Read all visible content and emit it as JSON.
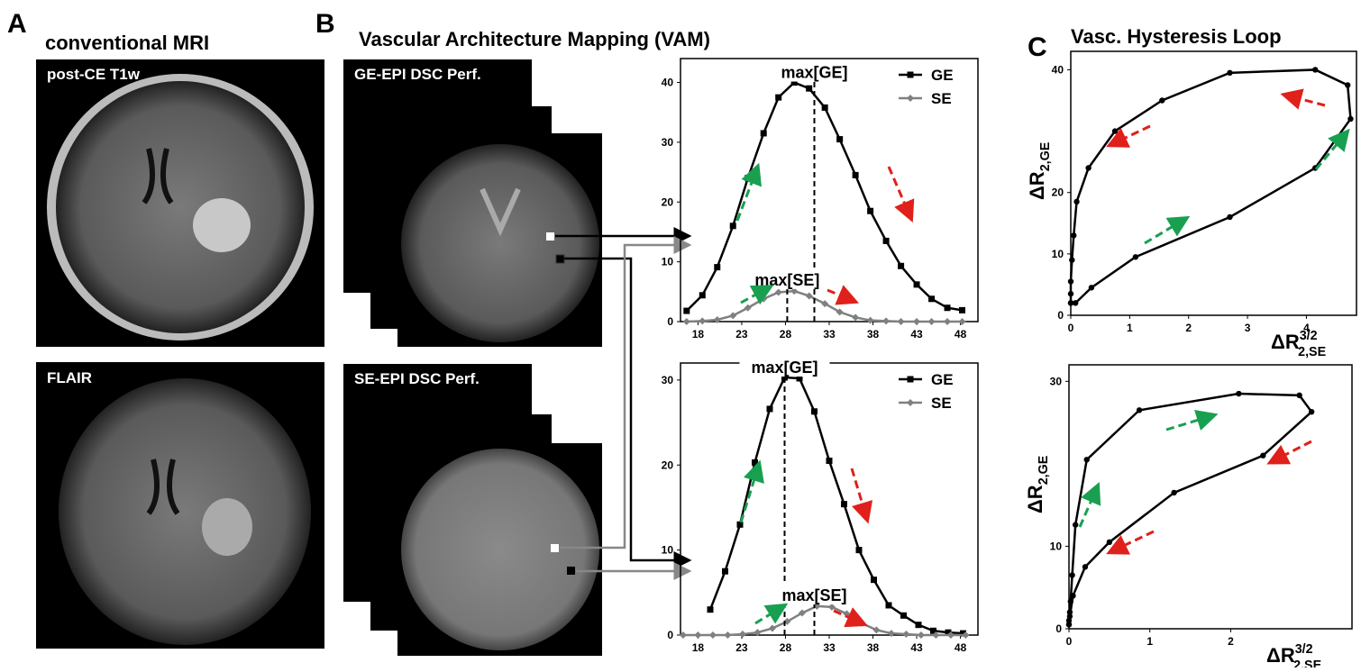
{
  "panels": {
    "a": {
      "label": "A",
      "title": "conventional MRI",
      "images": [
        "post-CE T1w",
        "FLAIR"
      ]
    },
    "b": {
      "label": "B",
      "title": "Vascular Architecture Mapping  (VAM)",
      "images": [
        "GE-EPI DSC Perf.",
        "SE-EPI DSC Perf."
      ]
    },
    "c": {
      "label": "C",
      "title": "Vasc. Hysteresis Loop"
    }
  },
  "chart_data": [
    {
      "type": "line",
      "xlim": [
        16,
        50
      ],
      "ylim": [
        0,
        44
      ],
      "xticks": [
        18,
        23,
        28,
        33,
        38,
        43,
        48
      ],
      "yticks": [
        0,
        10,
        20,
        30,
        40
      ],
      "legend": "top-right",
      "series": [
        {
          "name": "GE",
          "color": "#000000",
          "marker": "square",
          "x": [
            16.7,
            18.5,
            20.2,
            22,
            23.7,
            25.5,
            27.2,
            29,
            30.7,
            32.5,
            34.2,
            36,
            37.7,
            39.5,
            41.2,
            43,
            44.7,
            46.5,
            48.2
          ],
          "values": [
            1.8,
            4.4,
            9.1,
            16,
            24,
            31.5,
            37.5,
            40,
            39,
            35.8,
            30.5,
            24.5,
            18.5,
            13.5,
            9.3,
            6.2,
            3.8,
            2.3,
            1.9
          ]
        },
        {
          "name": "SE",
          "color": "#808080",
          "marker": "diamond",
          "x": [
            16.7,
            18.5,
            20.2,
            22,
            23.7,
            25.5,
            27.2,
            29,
            30.7,
            32.5,
            34.2,
            36,
            37.7,
            39.5,
            41.2,
            43,
            44.7,
            46.5,
            48.2
          ],
          "values": [
            0,
            0.1,
            0.3,
            1,
            2.3,
            3.8,
            4.9,
            5.1,
            4.3,
            3,
            1.6,
            0.7,
            0.2,
            0.1,
            0,
            0,
            0,
            0,
            0
          ]
        }
      ],
      "annotations": [
        {
          "text": "max[GE]",
          "x": 31.3,
          "y": 40
        },
        {
          "text": "max[SE]",
          "x": 28.2,
          "y": 5.3
        }
      ]
    },
    {
      "type": "line",
      "xlim": [
        16,
        50
      ],
      "ylim": [
        0,
        32
      ],
      "xticks": [
        18,
        23,
        28,
        33,
        38,
        43,
        48
      ],
      "yticks": [
        0,
        10,
        20,
        30
      ],
      "legend": "top-right",
      "series": [
        {
          "name": "GE",
          "color": "#000000",
          "marker": "square",
          "x": [
            19.4,
            21.1,
            22.8,
            24.5,
            26.2,
            27.9,
            29.6,
            31.3,
            33,
            34.7,
            36.4,
            38.1,
            39.8,
            41.5,
            43.2,
            44.9,
            46.6,
            48.3
          ],
          "values": [
            3,
            7.5,
            13,
            20.3,
            26.6,
            30.3,
            30.2,
            26.3,
            20.5,
            15.4,
            10,
            6.5,
            3.5,
            2.3,
            1.2,
            0.5,
            0.3,
            0.2
          ]
        },
        {
          "name": "SE",
          "color": "#808080",
          "marker": "diamond",
          "x": [
            16.3,
            18,
            19.7,
            21.4,
            23.1,
            24.8,
            26.5,
            28.2,
            29.9,
            31.6,
            33.3,
            35,
            36.7,
            38.4,
            40.1,
            41.8,
            43.5,
            45.2,
            46.9,
            48.6
          ],
          "values": [
            0,
            0,
            0,
            0,
            0.1,
            0.3,
            0.8,
            1.6,
            2.6,
            3.4,
            3.3,
            2.5,
            1.4,
            0.6,
            0.2,
            0.1,
            0,
            0,
            0,
            0
          ]
        }
      ],
      "annotations": [
        {
          "text": "max[GE]",
          "x": 27.9,
          "y": 30.3
        },
        {
          "text": "max[SE]",
          "x": 31.3,
          "y": 3.5
        }
      ]
    },
    {
      "type": "loop",
      "xlim": [
        0,
        4.85
      ],
      "ylim": [
        0,
        43
      ],
      "xticks": [
        0,
        1,
        2,
        3,
        4
      ],
      "yticks": [
        0,
        10,
        20,
        40
      ],
      "y_label": {
        "base": "ΔR",
        "sub": "2,GE"
      },
      "x_label": {
        "base": "ΔR",
        "sup": "3/2",
        "sub": "2,SE"
      },
      "series": [
        {
          "color": "#000000",
          "marker": "circle",
          "x": [
            0,
            0,
            0,
            0.02,
            0.05,
            0.1,
            0.3,
            0.75,
            1.55,
            2.7,
            4.15,
            4.7,
            4.75,
            4.15,
            2.7,
            1.1,
            0.35,
            0.08,
            0
          ],
          "values": [
            2,
            3.5,
            5.5,
            9,
            13,
            18.5,
            24,
            30,
            35,
            39.5,
            40,
            37.5,
            32,
            24,
            16,
            9.5,
            4.5,
            2,
            2
          ]
        }
      ]
    },
    {
      "type": "loop",
      "xlim": [
        0,
        3.5
      ],
      "ylim": [
        0,
        32
      ],
      "xticks": [
        0,
        1,
        2
      ],
      "yticks": [
        0,
        10,
        30
      ],
      "y_label": {
        "base": "ΔR",
        "sub": "2,GE"
      },
      "x_label": {
        "base": "ΔR",
        "sup": "3/2",
        "sub": "2,SE"
      },
      "series": [
        {
          "color": "#000000",
          "marker": "circle",
          "x": [
            0,
            0,
            0.01,
            0.02,
            0.04,
            0.08,
            0.22,
            0.87,
            2.1,
            2.85,
            3.0,
            2.4,
            1.3,
            0.5,
            0.2,
            0.05,
            0.01,
            0
          ],
          "values": [
            0.5,
            1,
            2,
            3.3,
            6.5,
            12.6,
            20.5,
            26.5,
            28.5,
            28.3,
            26.3,
            21,
            16.5,
            10.5,
            7.5,
            4,
            1.5,
            0.5
          ]
        }
      ]
    }
  ]
}
